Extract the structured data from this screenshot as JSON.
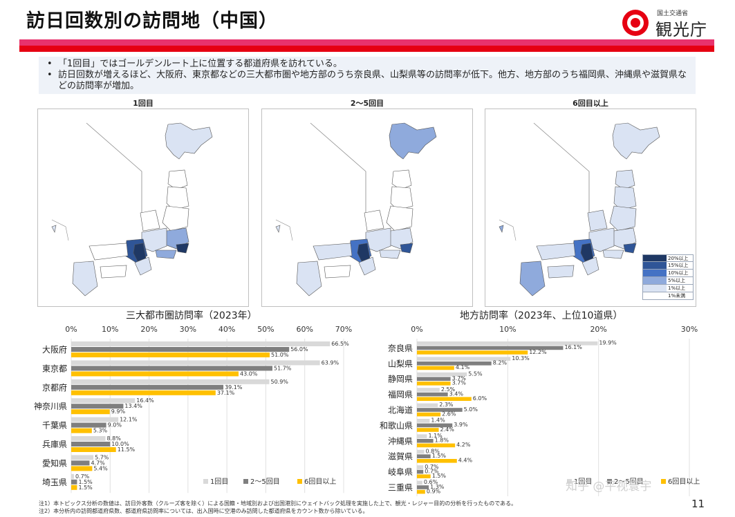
{
  "header": {
    "title": "訪日回数別の訪問地（中国）",
    "logo_sub": "国土交通省",
    "logo_main": "観光庁"
  },
  "bullets": [
    "「1回目」ではゴールデンルート上に位置する都道府県を訪れている。",
    "訪日回数が増えるほど、大阪府、東京都などの三大都市圏や地方部のうち奈良県、山梨県等の訪問率が低下。他方、地方部のうち福岡県、沖縄県や滋賀県などの訪問率が増加。"
  ],
  "maps": {
    "titles": [
      "1回目",
      "2～5回目",
      "6回目以上"
    ],
    "legend": [
      {
        "label": "20%以上",
        "color": "#1f3864"
      },
      {
        "label": "15%以上",
        "color": "#2f5597"
      },
      {
        "label": "10%以上",
        "color": "#4472c4"
      },
      {
        "label": "5%以上",
        "color": "#8faadc"
      },
      {
        "label": "1%以上",
        "color": "#dae3f3"
      },
      {
        "label": "1%未満",
        "color": "#ffffff"
      }
    ]
  },
  "chart_data": [
    {
      "type": "bar",
      "title": "三大都市圏訪問率（2023年）",
      "orientation": "horizontal",
      "xlim": [
        0,
        70
      ],
      "ticks": [
        "0%",
        "10%",
        "20%",
        "30%",
        "40%",
        "50%",
        "60%",
        "70%"
      ],
      "categories": [
        "大阪府",
        "東京都",
        "京都府",
        "神奈川県",
        "千葉県",
        "兵庫県",
        "愛知県",
        "埼玉県"
      ],
      "series": [
        {
          "name": "1回目",
          "color": "#d9d9d9",
          "values": [
            66.5,
            63.9,
            50.9,
            16.4,
            12.1,
            8.8,
            5.7,
            0.7
          ]
        },
        {
          "name": "2～5回目",
          "color": "#7f7f7f",
          "values": [
            56.0,
            51.7,
            39.1,
            13.4,
            9.0,
            10.0,
            4.7,
            1.5
          ]
        },
        {
          "name": "6回目以上",
          "color": "#ffc000",
          "values": [
            51.0,
            43.0,
            37.1,
            9.9,
            5.3,
            11.5,
            5.4,
            1.5
          ]
        }
      ],
      "labels": [
        [
          "66.5%",
          "56.0%",
          "51.0%"
        ],
        [
          "63.9%",
          "51.7%",
          "43.0%"
        ],
        [
          "50.9%",
          "39.1%",
          "37.1%"
        ],
        [
          "16.4%",
          "13.4%",
          "9.9%"
        ],
        [
          "12.1%",
          "9.0%",
          "5.3%"
        ],
        [
          "8.8%",
          "10.0%",
          "11.5%"
        ],
        [
          "5.7%",
          "4.7%",
          "5.4%"
        ],
        [
          "0.7%",
          "1.5%",
          "1.5%"
        ]
      ]
    },
    {
      "type": "bar",
      "title": "地方訪問率（2023年、上位10道県）",
      "orientation": "horizontal",
      "xlim": [
        0,
        30
      ],
      "ticks": [
        "0%",
        "10%",
        "20%",
        "30%"
      ],
      "categories": [
        "奈良県",
        "山梨県",
        "静岡県",
        "福岡県",
        "北海道",
        "和歌山県",
        "沖縄県",
        "滋賀県",
        "岐阜県",
        "三重県"
      ],
      "series": [
        {
          "name": "1回目",
          "color": "#d9d9d9",
          "values": [
            19.9,
            10.3,
            5.5,
            2.5,
            2.3,
            1.4,
            1.1,
            0.8,
            0.7,
            0.6
          ]
        },
        {
          "name": "2～5回目",
          "color": "#7f7f7f",
          "values": [
            16.1,
            8.2,
            3.7,
            3.4,
            5.0,
            3.9,
            1.8,
            1.5,
            0.7,
            1.3
          ]
        },
        {
          "name": "6回目以上",
          "color": "#ffc000",
          "values": [
            12.2,
            4.1,
            3.7,
            6.0,
            2.6,
            2.4,
            4.2,
            4.4,
            1.5,
            0.9
          ]
        }
      ],
      "labels": [
        [
          "19.9%",
          "16.1%",
          "12.2%"
        ],
        [
          "10.3%",
          "8.2%",
          "4.1%"
        ],
        [
          "5.5%",
          "3.7%",
          "3.7%"
        ],
        [
          "2.5%",
          "3.4%",
          "6.0%"
        ],
        [
          "2.3%",
          "5.0%",
          "2.6%"
        ],
        [
          "1.4%",
          "3.9%",
          "2.4%"
        ],
        [
          "1.1%",
          "1.8%",
          "4.2%"
        ],
        [
          "0.8%",
          "1.5%",
          "4.4%"
        ],
        [
          "0.7%",
          "0.7%",
          "1.5%"
        ],
        [
          "0.6%",
          "1.3%",
          "0.9%"
        ]
      ]
    }
  ],
  "notes": [
    "注1）本トピックス分析の数値は、訪日外客数（クルーズ客を除く）による国籍・地域別および出国港別にウェイトバック処理を実施した上で、観光・レジャー目的の分析を行ったものである。",
    "注2）本分析内の訪問都道府県数、都道府県訪問率については、出入国時に空港のみ訪問した都道府県をカウント数から除いている。"
  ],
  "page_number": "11",
  "watermark": "知乎 @平视寰宇"
}
